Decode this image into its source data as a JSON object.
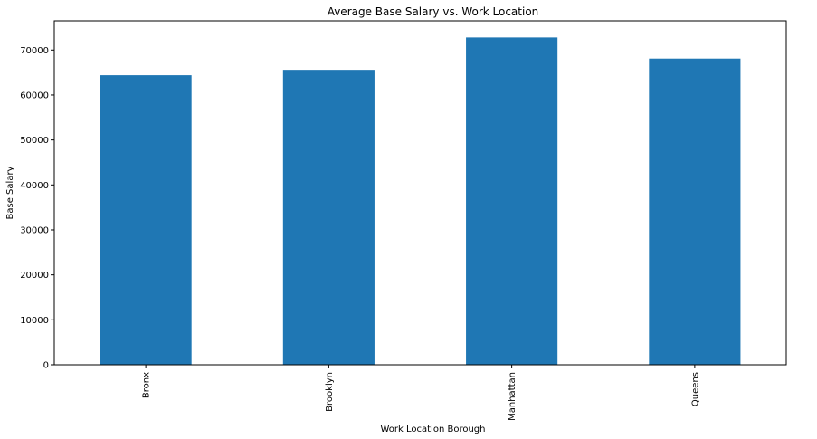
{
  "chart_data": {
    "type": "bar",
    "title": "Average Base Salary vs. Work Location",
    "xlabel": "Work Location Borough",
    "ylabel": "Base Salary",
    "categories": [
      "Bronx",
      "Brooklyn",
      "Manhattan",
      "Queens"
    ],
    "values": [
      64400,
      65600,
      72800,
      68100
    ],
    "ylim": [
      0,
      76500
    ],
    "yticks": [
      0,
      10000,
      20000,
      30000,
      40000,
      50000,
      60000,
      70000
    ],
    "ytick_labels": [
      "0",
      "10000",
      "20000",
      "30000",
      "40000",
      "50000",
      "60000",
      "70000"
    ],
    "bar_color": "#1f77b4",
    "grid": false,
    "legend": false
  }
}
